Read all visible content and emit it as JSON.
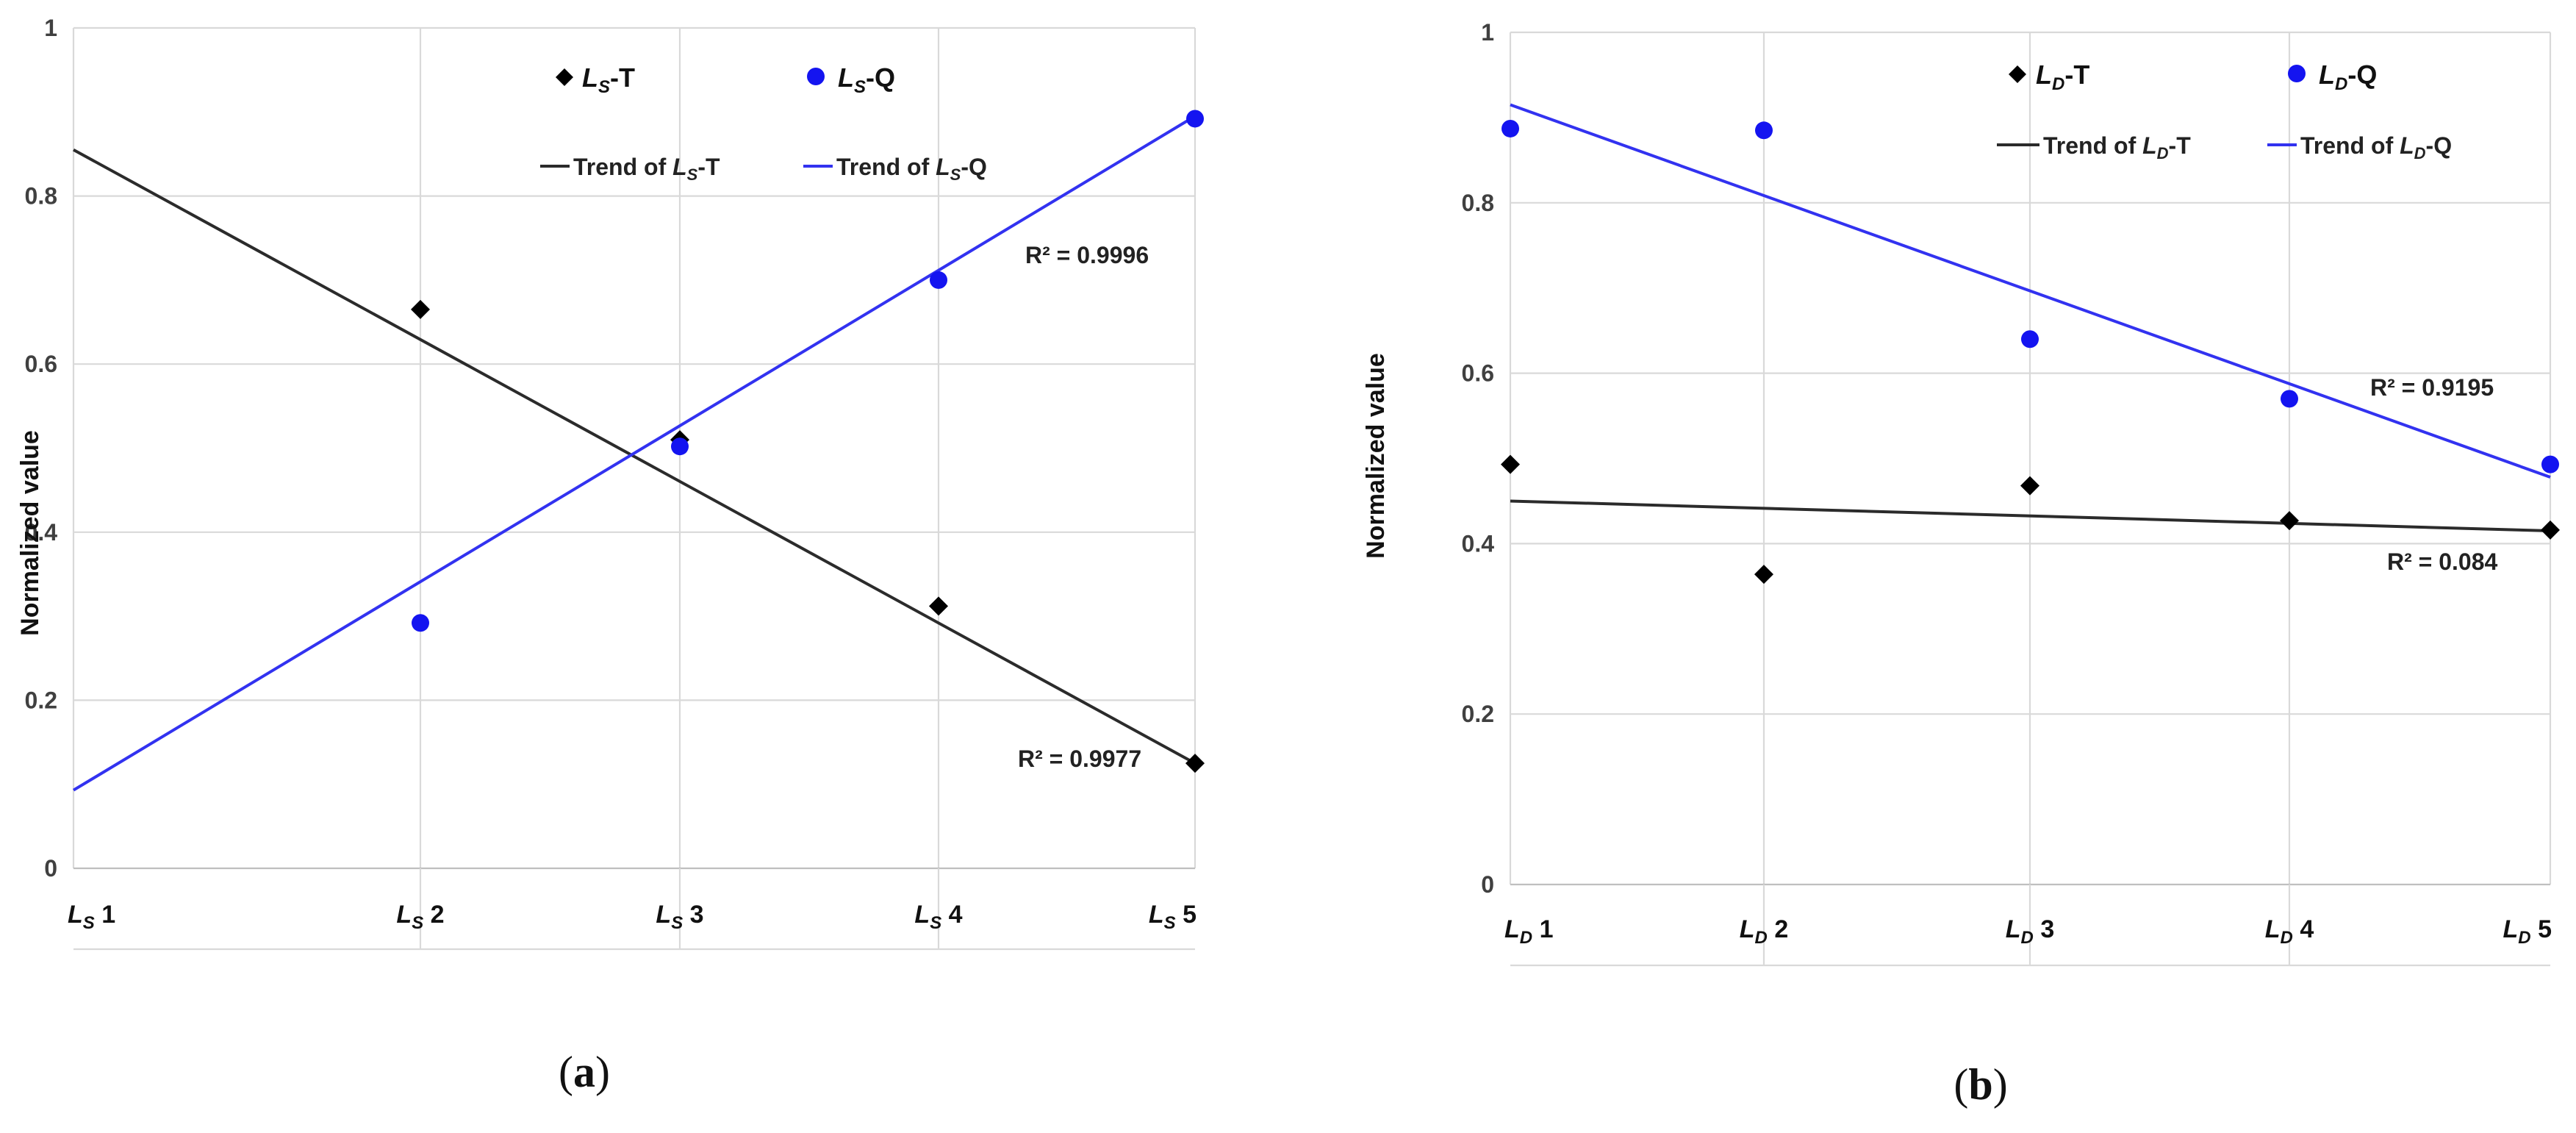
{
  "colors": {
    "series_T": "#000000",
    "series_Q": "#1414f0",
    "trend_T": "#2b2b2b",
    "trend_Q": "#3232f0"
  },
  "chart_data": [
    {
      "id": "a",
      "type": "scatter",
      "caption": {
        "open": "(",
        "label": "a",
        "close": ")"
      },
      "ylabel": "Normalized value",
      "ylim": [
        0,
        1
      ],
      "yticks": [
        "0",
        "0.2",
        "0.4",
        "0.6",
        "0.8",
        "1"
      ],
      "categories": [
        {
          "sym": "L",
          "sub": "S",
          "num": "1"
        },
        {
          "sym": "L",
          "sub": "S",
          "num": "2"
        },
        {
          "sym": "L",
          "sub": "S",
          "num": "3"
        },
        {
          "sym": "L",
          "sub": "S",
          "num": "4"
        },
        {
          "sym": "L",
          "sub": "S",
          "num": "5"
        }
      ],
      "series": [
        {
          "name": {
            "sym": "L",
            "sub": "S",
            "suffix": "-T"
          },
          "marker": "diamond",
          "values": [
            null,
            0.665,
            0.51,
            0.312,
            0.125
          ]
        },
        {
          "name": {
            "sym": "L",
            "sub": "S",
            "suffix": "-Q"
          },
          "marker": "circle",
          "values": [
            null,
            0.292,
            0.502,
            0.7,
            0.892
          ]
        }
      ],
      "trendlines": [
        {
          "name": {
            "prefix": "Trend of ",
            "sym": "L",
            "sub": "S",
            "suffix": "-T"
          },
          "y_start": 0.855,
          "y_end": 0.125,
          "r2": "R² = 0.9977"
        },
        {
          "name": {
            "prefix": "Trend of ",
            "sym": "L",
            "sub": "S",
            "suffix": "-Q"
          },
          "y_start": 0.093,
          "y_end": 0.895,
          "r2": "R² = 0.9996"
        }
      ]
    },
    {
      "id": "b",
      "type": "scatter",
      "caption": {
        "open": "(",
        "label": "b",
        "close": ")"
      },
      "ylabel": "Normalized value",
      "ylim": [
        0,
        1
      ],
      "yticks": [
        "0",
        "0.2",
        "0.4",
        "0.6",
        "0.8",
        "1"
      ],
      "categories": [
        {
          "sym": "L",
          "sub": "D",
          "num": "1"
        },
        {
          "sym": "L",
          "sub": "D",
          "num": "2"
        },
        {
          "sym": "L",
          "sub": "D",
          "num": "3"
        },
        {
          "sym": "L",
          "sub": "D",
          "num": "4"
        },
        {
          "sym": "L",
          "sub": "D",
          "num": "5"
        }
      ],
      "series": [
        {
          "name": {
            "sym": "L",
            "sub": "D",
            "suffix": "-T"
          },
          "marker": "diamond",
          "values": [
            0.493,
            0.364,
            0.468,
            0.427,
            0.416
          ]
        },
        {
          "name": {
            "sym": "L",
            "sub": "D",
            "suffix": "-Q"
          },
          "marker": "circle",
          "values": [
            0.887,
            0.885,
            0.64,
            0.57,
            0.493
          ]
        }
      ],
      "trendlines": [
        {
          "name": {
            "prefix": "Trend of ",
            "sym": "L",
            "sub": "D",
            "suffix": "-T"
          },
          "y_start": 0.45,
          "y_end": 0.415,
          "r2": "R² = 0.084"
        },
        {
          "name": {
            "prefix": "Trend of ",
            "sym": "L",
            "sub": "D",
            "suffix": "-Q"
          },
          "y_start": 0.915,
          "y_end": 0.478,
          "r2": "R² = 0.9195"
        }
      ]
    }
  ]
}
